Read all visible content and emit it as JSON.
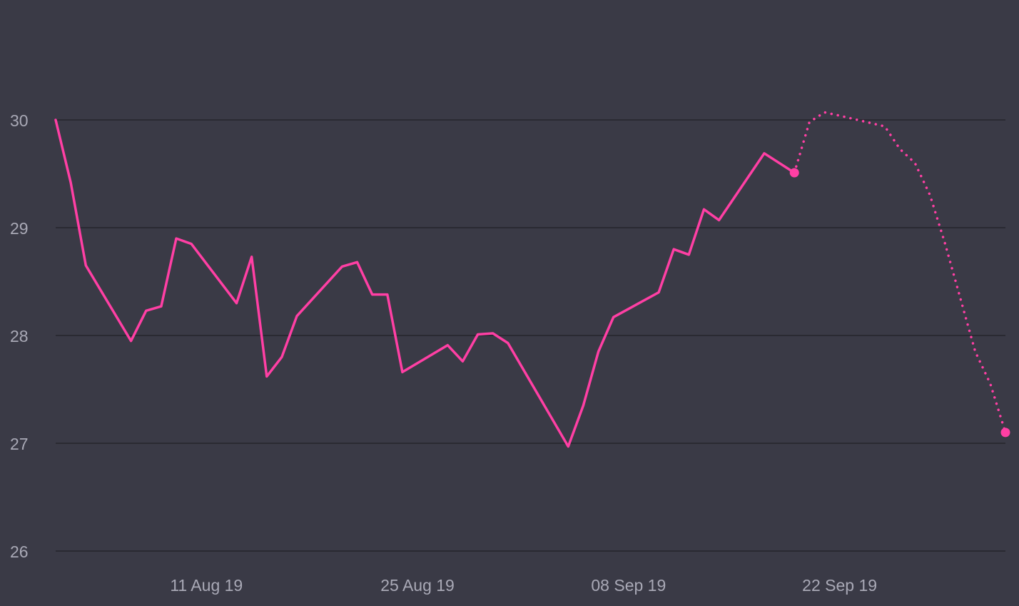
{
  "chart_data": {
    "type": "line",
    "title": "",
    "xlabel": "",
    "ylabel": "",
    "ylim": [
      26,
      30.5
    ],
    "xlim": [
      "2019-08-01",
      "2019-10-03"
    ],
    "grid": true,
    "legend": "none",
    "x_ticks": [
      {
        "date": "2019-08-11",
        "label": "11 Aug 19"
      },
      {
        "date": "2019-08-25",
        "label": "25 Aug 19"
      },
      {
        "date": "2019-09-08",
        "label": "08 Sep 19"
      },
      {
        "date": "2019-09-22",
        "label": "22 Sep 19"
      }
    ],
    "y_ticks": [
      26,
      27,
      28,
      29,
      30
    ],
    "series": [
      {
        "style": "solid",
        "color": "#ff3fa4",
        "end_marker": true,
        "points": [
          [
            "2019-08-01",
            30.0
          ],
          [
            "2019-08-02",
            29.42
          ],
          [
            "2019-08-03",
            28.65
          ],
          [
            "2019-08-06",
            27.95
          ],
          [
            "2019-08-07",
            28.23
          ],
          [
            "2019-08-08",
            28.27
          ],
          [
            "2019-08-09",
            28.9
          ],
          [
            "2019-08-10",
            28.85
          ],
          [
            "2019-08-13",
            28.3
          ],
          [
            "2019-08-14",
            28.73
          ],
          [
            "2019-08-15",
            27.62
          ],
          [
            "2019-08-16",
            27.8
          ],
          [
            "2019-08-17",
            28.18
          ],
          [
            "2019-08-20",
            28.64
          ],
          [
            "2019-08-21",
            28.68
          ],
          [
            "2019-08-22",
            28.38
          ],
          [
            "2019-08-23",
            28.38
          ],
          [
            "2019-08-24",
            27.66
          ],
          [
            "2019-08-27",
            27.91
          ],
          [
            "2019-08-28",
            27.76
          ],
          [
            "2019-08-29",
            28.01
          ],
          [
            "2019-08-30",
            28.02
          ],
          [
            "2019-08-31",
            27.93
          ],
          [
            "2019-09-04",
            26.97
          ],
          [
            "2019-09-05",
            27.35
          ],
          [
            "2019-09-06",
            27.85
          ],
          [
            "2019-09-07",
            28.17
          ],
          [
            "2019-09-10",
            28.4
          ],
          [
            "2019-09-11",
            28.8
          ],
          [
            "2019-09-12",
            28.75
          ],
          [
            "2019-09-13",
            29.17
          ],
          [
            "2019-09-14",
            29.07
          ],
          [
            "2019-09-17",
            29.69
          ],
          [
            "2019-09-19",
            29.51
          ]
        ]
      },
      {
        "style": "dotted",
        "color": "#ff3fa4",
        "end_marker": true,
        "points": [
          [
            "2019-09-19",
            29.51
          ],
          [
            "2019-09-20",
            29.98
          ],
          [
            "2019-09-21",
            30.07
          ],
          [
            "2019-09-22",
            30.04
          ],
          [
            "2019-09-25",
            29.94
          ],
          [
            "2019-09-26",
            29.73
          ],
          [
            "2019-09-27",
            29.6
          ],
          [
            "2019-09-28",
            29.3
          ],
          [
            "2019-09-29",
            28.85
          ],
          [
            "2019-09-30",
            28.35
          ],
          [
            "2019-10-01",
            27.85
          ],
          [
            "2019-10-02",
            27.55
          ],
          [
            "2019-10-03",
            27.1
          ]
        ]
      }
    ]
  },
  "colors": {
    "background": "#3a3a46",
    "gridline": "#24242c",
    "tick_text": "#a9a9b6",
    "series": "#ff3fa4"
  }
}
